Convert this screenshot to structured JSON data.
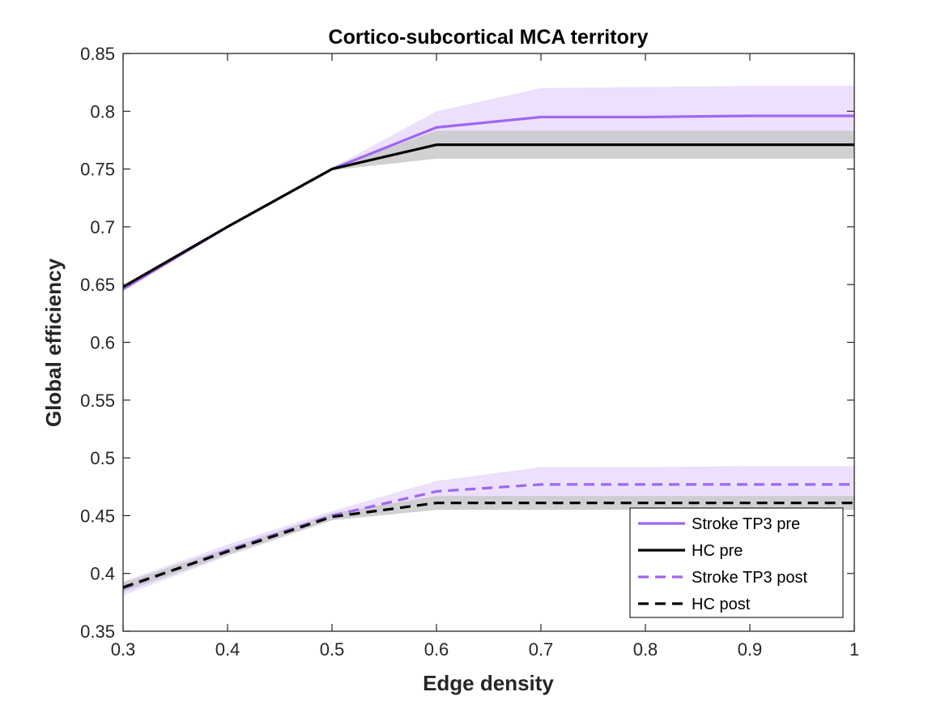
{
  "chart_data": {
    "type": "line",
    "title": "Cortico-subcortical MCA territory",
    "xlabel": "Edge density",
    "ylabel": "Global efficiency",
    "xlim": [
      0.3,
      1.0
    ],
    "ylim": [
      0.35,
      0.85
    ],
    "xticks": [
      0.3,
      0.4,
      0.5,
      0.6,
      0.7,
      0.8,
      0.9,
      1.0
    ],
    "xtick_labels": [
      "0.3",
      "0.4",
      "0.5",
      "0.6",
      "0.7",
      "0.8",
      "0.9",
      "1"
    ],
    "yticks": [
      0.35,
      0.4,
      0.45,
      0.5,
      0.55,
      0.6,
      0.65,
      0.7,
      0.75,
      0.8,
      0.85
    ],
    "ytick_labels": [
      "0.35",
      "0.4",
      "0.45",
      "0.5",
      "0.55",
      "0.6",
      "0.65",
      "0.7",
      "0.75",
      "0.8",
      "0.85"
    ],
    "grid": false,
    "legend_position": "bottom-right",
    "x": [
      0.3,
      0.4,
      0.5,
      0.6,
      0.7,
      0.8,
      0.9,
      1.0
    ],
    "series": [
      {
        "name": "Stroke TP3 pre",
        "style": "solid",
        "color": "#a066f0",
        "band_color": "#ebdefc",
        "values": [
          0.646,
          0.7,
          0.75,
          0.786,
          0.795,
          0.795,
          0.796,
          0.796
        ],
        "lower": [
          0.645,
          0.699,
          0.749,
          0.772,
          0.77,
          0.77,
          0.77,
          0.77
        ],
        "upper": [
          0.648,
          0.701,
          0.751,
          0.8,
          0.82,
          0.821,
          0.822,
          0.822
        ]
      },
      {
        "name": "HC pre",
        "style": "solid",
        "color": "#000000",
        "band_color": "#c9c9c9",
        "values": [
          0.648,
          0.7,
          0.75,
          0.771,
          0.771,
          0.771,
          0.771,
          0.771
        ],
        "lower": [
          0.647,
          0.699,
          0.749,
          0.759,
          0.759,
          0.759,
          0.759,
          0.759
        ],
        "upper": [
          0.649,
          0.701,
          0.751,
          0.783,
          0.783,
          0.783,
          0.783,
          0.783
        ]
      },
      {
        "name": "Stroke TP3 post",
        "style": "dashed",
        "color": "#a066f0",
        "band_color": "#ebdefc",
        "values": [
          0.387,
          0.42,
          0.45,
          0.471,
          0.477,
          0.477,
          0.477,
          0.477
        ],
        "lower": [
          0.381,
          0.415,
          0.446,
          0.462,
          0.462,
          0.462,
          0.462,
          0.462
        ],
        "upper": [
          0.393,
          0.425,
          0.454,
          0.48,
          0.492,
          0.492,
          0.493,
          0.493
        ]
      },
      {
        "name": "HC post",
        "style": "dashed",
        "color": "#000000",
        "band_color": "#c9c9c9",
        "values": [
          0.388,
          0.419,
          0.449,
          0.461,
          0.461,
          0.461,
          0.461,
          0.461
        ],
        "lower": [
          0.384,
          0.416,
          0.446,
          0.455,
          0.455,
          0.455,
          0.455,
          0.455
        ],
        "upper": [
          0.392,
          0.422,
          0.452,
          0.467,
          0.467,
          0.467,
          0.467,
          0.467
        ]
      }
    ]
  }
}
